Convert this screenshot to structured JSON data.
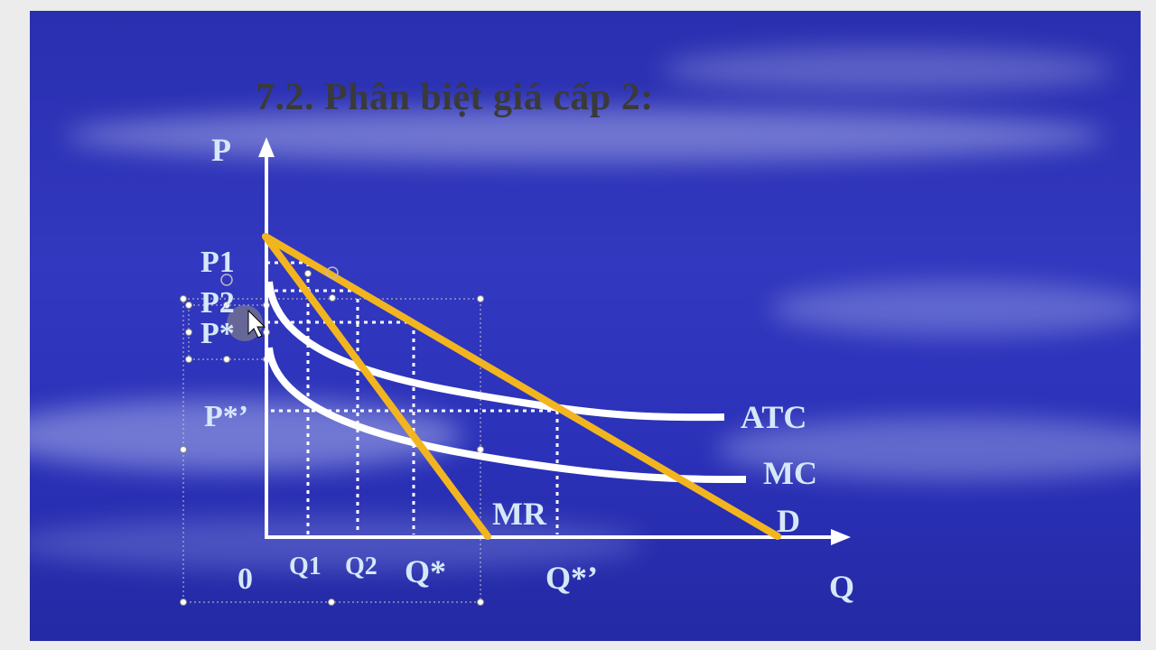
{
  "slide": {
    "title": "7.2. Phân biệt giá cấp 2:"
  },
  "diagram": {
    "axis_y_label": "P",
    "axis_x_label": "Q",
    "origin_label": "0",
    "price_labels": [
      "P1",
      "P2",
      "P*",
      "P*’"
    ],
    "quantity_labels": [
      "Q1",
      "Q2",
      "Q*",
      "Q*’"
    ],
    "curve_labels": {
      "atc": "ATC",
      "mc": "MC",
      "mr": "MR",
      "demand": "D"
    }
  },
  "colors": {
    "slide_background": "#2f35b8",
    "curve_white": "#ffffff",
    "demand_mr_orange": "#f2b51f",
    "label_lightblue": "#d6e8f8",
    "title_gray": "#3a3a3a"
  }
}
